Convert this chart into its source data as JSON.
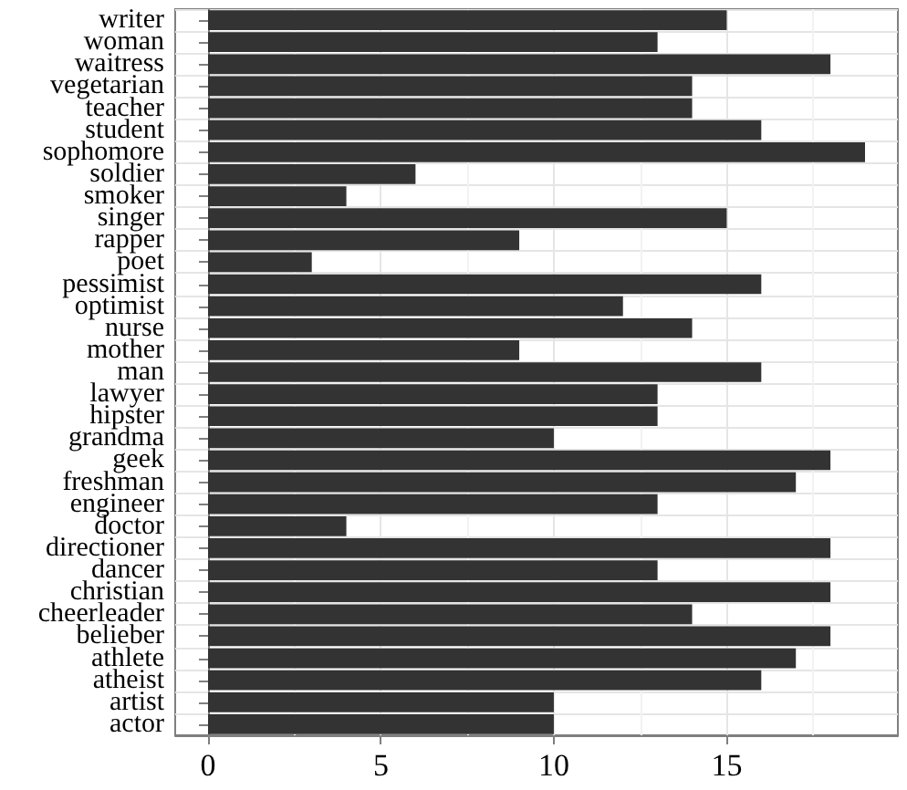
{
  "chart_data": {
    "type": "bar",
    "orientation": "horizontal",
    "categories": [
      "writer",
      "woman",
      "waitress",
      "vegetarian",
      "teacher",
      "student",
      "sophomore",
      "soldier",
      "smoker",
      "singer",
      "rapper",
      "poet",
      "pessimist",
      "optimist",
      "nurse",
      "mother",
      "man",
      "lawyer",
      "hipster",
      "grandma",
      "geek",
      "freshman",
      "engineer",
      "doctor",
      "directioner",
      "dancer",
      "christian",
      "cheerleader",
      "belieber",
      "athlete",
      "atheist",
      "artist",
      "actor"
    ],
    "values": [
      15,
      13,
      18,
      14,
      14,
      16,
      19,
      6,
      4,
      15,
      9,
      3,
      16,
      12,
      14,
      9,
      16,
      13,
      13,
      10,
      18,
      17,
      13,
      4,
      18,
      13,
      18,
      14,
      18,
      17,
      16,
      10,
      10
    ],
    "color": "#333333",
    "xlim": [
      -0.95,
      19.95
    ],
    "xticks": [
      0,
      5,
      10,
      15
    ],
    "grid": true
  }
}
